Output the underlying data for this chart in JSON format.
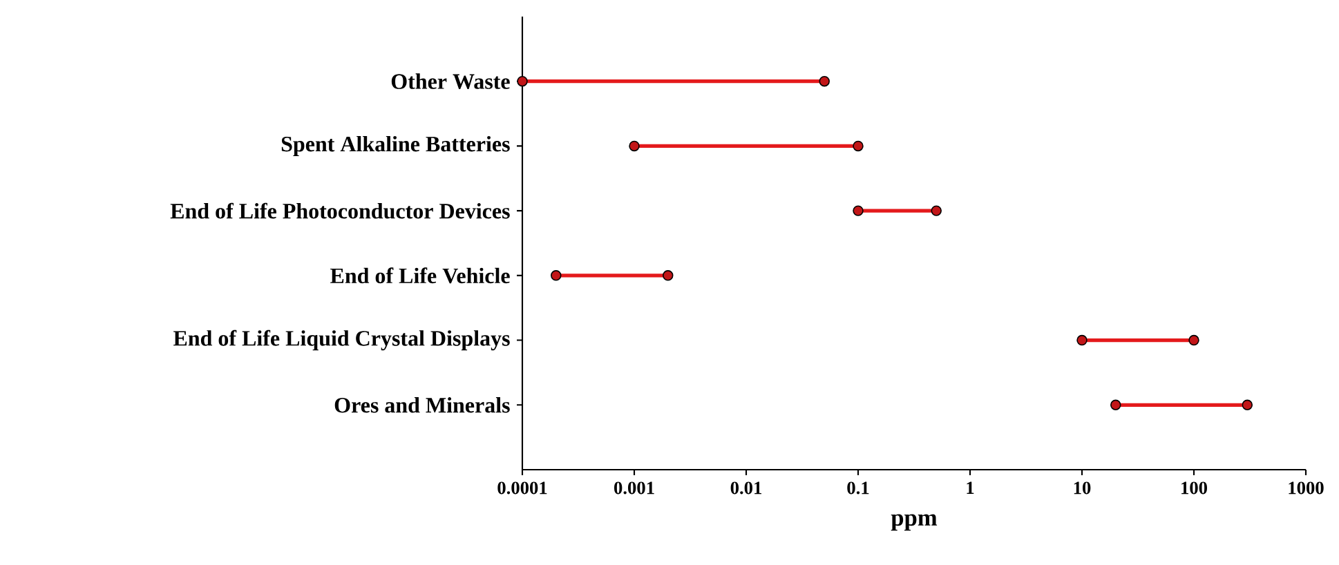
{
  "chart_data": {
    "type": "bar",
    "orientation": "horizontal",
    "log": "x",
    "xlabel": "ppm",
    "categories": [
      "Other Waste",
      "Spent Alkaline Batteries",
      "End of Life Photoconductor Devices",
      "End of Life Vehicle",
      "End of Life Liquid Crystal Displays",
      "Ores and Minerals"
    ],
    "series": [
      {
        "type": "scatter",
        "marker": "circle",
        "color": "#c21618",
        "values": [
          0.0001,
          0.001,
          0.1,
          0.0002,
          10,
          20
        ]
      },
      {
        "type": "scatter",
        "marker": "circle",
        "color": "#c21618",
        "values": [
          0.05,
          0.1,
          0.5,
          0.002,
          100,
          300
        ]
      },
      {
        "color": "#e41a1c",
        "base": [
          0.0001,
          0.001,
          0.1,
          0.0002,
          10,
          20
        ],
        "values": [
          0.0499,
          0.099,
          0.4,
          0.0018,
          90,
          280
        ]
      }
    ],
    "xlim": [
      0.0001,
      1000
    ],
    "xticks": [
      {
        "value": 0.0001,
        "label": "0.0001"
      },
      {
        "value": 0.001,
        "label": "0.001"
      },
      {
        "value": 0.01,
        "label": "0.01"
      },
      {
        "value": 0.1,
        "label": "0.1"
      },
      {
        "value": 1,
        "label": "1"
      },
      {
        "value": 10,
        "label": "10"
      },
      {
        "value": 100,
        "label": "100"
      },
      {
        "value": 1000,
        "label": "1000"
      }
    ]
  }
}
